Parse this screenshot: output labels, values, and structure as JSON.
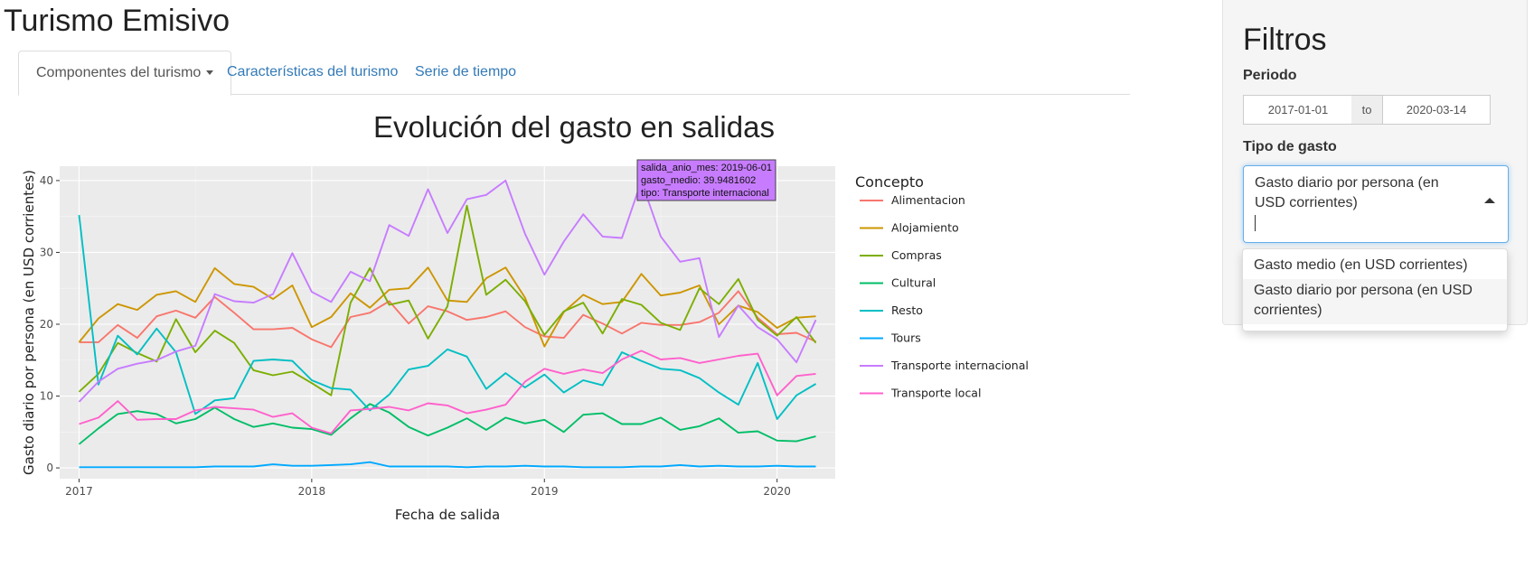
{
  "app": {
    "title": "Turismo Emisivo"
  },
  "tabs": [
    {
      "label": "Componentes del turismo",
      "has_dropdown": true,
      "active": true
    },
    {
      "label": "Características del turismo"
    },
    {
      "label": "Serie de tiempo"
    }
  ],
  "sidebar": {
    "title": "Filtros",
    "period_label": "Periodo",
    "date_start": "2017-01-01",
    "date_separator": "to",
    "date_end": "2020-03-14",
    "tipo_label": "Tipo de gasto",
    "tipo_selected": "Gasto diario por persona (en USD corrientes)",
    "tipo_options": [
      "Gasto medio (en USD corrientes)",
      "Gasto diario por persona (en USD corrientes)"
    ]
  },
  "chart_data": {
    "type": "line",
    "title": "Evolución del gasto en salidas",
    "xlabel": "Fecha de salida",
    "ylabel": "Gasto diario por persona (en USD corrientes)",
    "ylim": [
      -1.5,
      42
    ],
    "xlim": [
      "2016-12",
      "2020-04"
    ],
    "yticks": [
      0,
      10,
      20,
      30,
      40
    ],
    "xticks": [
      "2017",
      "2018",
      "2019",
      "2020"
    ],
    "legend_title": "Concepto",
    "legend_position": "right",
    "background": "#ebebeb",
    "x": [
      "2017-01",
      "2017-02",
      "2017-03",
      "2017-04",
      "2017-05",
      "2017-06",
      "2017-07",
      "2017-08",
      "2017-09",
      "2017-10",
      "2017-11",
      "2017-12",
      "2018-01",
      "2018-02",
      "2018-03",
      "2018-04",
      "2018-05",
      "2018-06",
      "2018-07",
      "2018-08",
      "2018-09",
      "2018-10",
      "2018-11",
      "2018-12",
      "2019-01",
      "2019-02",
      "2019-03",
      "2019-04",
      "2019-05",
      "2019-06",
      "2019-07",
      "2019-08",
      "2019-09",
      "2019-10",
      "2019-11",
      "2019-12",
      "2020-01",
      "2020-02",
      "2020-03"
    ],
    "series": [
      {
        "name": "Alimentacion",
        "color": "#F8766D",
        "values": [
          17.5,
          17.5,
          19.9,
          18.1,
          21.1,
          21.9,
          20.9,
          23.8,
          21.6,
          19.3,
          19.3,
          19.5,
          17.9,
          16.8,
          21.0,
          21.6,
          23.2,
          20.1,
          22.5,
          21.8,
          20.6,
          21.0,
          21.8,
          19.6,
          18.3,
          18.1,
          21.3,
          20.1,
          18.7,
          20.2,
          19.9,
          19.9,
          20.3,
          21.6,
          24.6,
          20.9,
          18.6,
          18.8,
          17.6
        ]
      },
      {
        "name": "Alojamiento",
        "color": "#CD9600",
        "values": [
          17.5,
          20.8,
          22.8,
          22.0,
          24.1,
          24.6,
          23.1,
          27.8,
          25.6,
          25.2,
          23.5,
          25.4,
          19.6,
          21.0,
          24.3,
          22.3,
          24.8,
          25.0,
          27.9,
          23.3,
          23.1,
          26.4,
          27.9,
          23.7,
          16.9,
          21.7,
          24.1,
          22.8,
          23.1,
          27.0,
          24.0,
          24.4,
          25.4,
          20.0,
          22.6,
          21.7,
          19.5,
          20.9,
          21.1
        ]
      },
      {
        "name": "Compras",
        "color": "#7CAE00",
        "values": [
          10.6,
          13.1,
          17.4,
          16.0,
          14.8,
          20.7,
          16.1,
          19.1,
          17.4,
          13.6,
          12.9,
          13.4,
          11.8,
          10.1,
          23.0,
          27.8,
          22.7,
          23.3,
          18.0,
          22.5,
          36.5,
          24.1,
          26.2,
          23.2,
          18.5,
          21.8,
          23.0,
          18.7,
          23.5,
          22.7,
          20.2,
          19.2,
          25.0,
          22.8,
          26.3,
          20.6,
          18.4,
          21.0,
          17.4
        ]
      },
      {
        "name": "Cultural",
        "color": "#00BE67",
        "values": [
          3.3,
          5.5,
          7.5,
          7.9,
          7.5,
          6.2,
          6.8,
          8.4,
          6.8,
          5.7,
          6.2,
          5.6,
          5.4,
          4.6,
          6.9,
          8.9,
          7.7,
          5.7,
          4.5,
          5.6,
          6.9,
          5.3,
          7.0,
          6.2,
          6.7,
          5.0,
          7.4,
          7.6,
          6.1,
          6.1,
          7.0,
          5.3,
          5.8,
          6.9,
          4.9,
          5.1,
          3.8,
          3.7,
          4.4
        ]
      },
      {
        "name": "Resto",
        "color": "#00BFC4",
        "values": [
          35.2,
          11.6,
          18.4,
          15.8,
          19.4,
          16.1,
          7.5,
          9.4,
          9.7,
          14.9,
          15.1,
          14.9,
          12.2,
          11.1,
          10.9,
          8.0,
          10.2,
          13.7,
          14.2,
          16.5,
          15.5,
          11.0,
          13.2,
          11.2,
          13.0,
          10.5,
          12.2,
          11.5,
          16.1,
          14.9,
          13.8,
          13.6,
          12.5,
          10.5,
          8.8,
          14.6,
          6.8,
          10.1,
          11.7
        ]
      },
      {
        "name": "Tours",
        "color": "#00A9FF",
        "values": [
          0.1,
          0.1,
          0.1,
          0.1,
          0.1,
          0.1,
          0.1,
          0.2,
          0.2,
          0.2,
          0.5,
          0.3,
          0.3,
          0.4,
          0.5,
          0.8,
          0.2,
          0.2,
          0.2,
          0.2,
          0.1,
          0.2,
          0.2,
          0.3,
          0.2,
          0.2,
          0.1,
          0.1,
          0.1,
          0.2,
          0.2,
          0.4,
          0.2,
          0.3,
          0.2,
          0.2,
          0.3,
          0.2,
          0.2
        ]
      },
      {
        "name": "Transporte internacional",
        "color": "#C77CFF",
        "values": [
          9.2,
          12.0,
          13.8,
          14.5,
          15.0,
          16.2,
          17.0,
          24.2,
          23.2,
          23.0,
          24.2,
          29.9,
          24.5,
          23.1,
          27.3,
          26.0,
          33.8,
          32.3,
          38.8,
          32.7,
          37.4,
          38.0,
          40.0,
          32.6,
          26.9,
          31.5,
          35.3,
          32.2,
          32.0,
          39.9,
          32.2,
          28.7,
          29.2,
          18.2,
          22.6,
          19.6,
          17.9,
          14.7,
          20.6
        ]
      },
      {
        "name": "Transporte local",
        "color": "#FF61CC",
        "values": [
          6.1,
          7.0,
          9.3,
          6.7,
          6.8,
          6.8,
          8.0,
          8.5,
          8.3,
          8.1,
          7.1,
          7.6,
          5.6,
          4.8,
          8.0,
          8.2,
          8.5,
          8.0,
          9.0,
          8.7,
          7.6,
          8.1,
          8.8,
          12.0,
          13.8,
          13.1,
          13.7,
          13.2,
          15.1,
          16.3,
          15.1,
          15.3,
          14.6,
          15.1,
          15.6,
          15.9,
          10.1,
          12.8,
          13.1
        ]
      }
    ],
    "tooltip": {
      "lines": [
        "salida_anio_mes: 2019-06-01",
        "gasto_medio: 39.9481602",
        "tipo: Transporte internacional"
      ],
      "series": "Transporte internacional",
      "x": "2019-06",
      "y": 39.9481602
    }
  }
}
